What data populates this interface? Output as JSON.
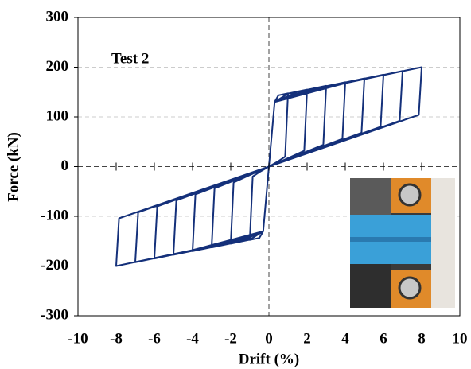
{
  "chart_data": {
    "type": "line",
    "annotation": "Test 2",
    "x_label": "Drift (%)",
    "y_label": "Force (kN)",
    "xlim": [
      -10,
      10
    ],
    "xticks": [
      -10,
      -8,
      -6,
      -4,
      -2,
      0,
      2,
      4,
      6,
      8,
      10
    ],
    "ylim": [
      -300,
      300
    ],
    "yticks": [
      -300,
      -200,
      -100,
      0,
      100,
      200,
      300
    ],
    "grid": true,
    "series": [
      {
        "color": "#14307a",
        "x": [
          0,
          0.3,
          0.5,
          1,
          0.85,
          0.5,
          0,
          -0.3,
          -0.5,
          -1,
          -0.85,
          -0.5,
          0,
          0.3,
          1,
          2,
          1.85,
          1,
          0,
          -0.3,
          -1,
          -2,
          -1.85,
          -1,
          0,
          0.3,
          1.5,
          3,
          2.85,
          1.5,
          0,
          -0.3,
          -1.5,
          -3,
          -2.85,
          -1.5,
          0,
          0.3,
          2,
          4,
          3.85,
          2,
          0,
          -0.3,
          -2,
          -4,
          -3.85,
          -2,
          0,
          0.3,
          2.5,
          5,
          4.85,
          2.5,
          0,
          -0.3,
          -2.5,
          -5,
          -4.85,
          -2.5,
          0,
          0.3,
          3,
          6,
          5.85,
          3,
          0,
          -0.3,
          -3,
          -6,
          -5.85,
          -3,
          0,
          0.3,
          3.5,
          7,
          6.85,
          3.5,
          0,
          -0.3,
          -3.5,
          -7,
          -6.85,
          -3.5,
          0,
          0.3,
          4,
          8,
          7.85,
          4,
          0,
          -0.3,
          -4,
          -8,
          -7.85,
          -4,
          0
        ],
        "y": [
          0,
          130,
          143.5,
          147.5,
          20,
          11,
          0,
          -130,
          -143.5,
          -147.5,
          -20,
          -11,
          0,
          130,
          147,
          155,
          32,
          17,
          0,
          -130,
          -147,
          -155,
          -32,
          -17,
          0,
          130,
          150.5,
          162.5,
          44,
          23,
          0,
          -130,
          -150.5,
          -162.5,
          -44,
          -23,
          0,
          130,
          154,
          170,
          56,
          29,
          0,
          -130,
          -154,
          -170,
          -56,
          -29,
          0,
          130,
          157.5,
          177.5,
          68,
          35,
          0,
          -130,
          -157.5,
          -177.5,
          -68,
          -35,
          0,
          130,
          161,
          185,
          80,
          41,
          0,
          -130,
          -161,
          -185,
          -80,
          -41,
          0,
          130,
          164.5,
          192.5,
          92,
          47,
          0,
          -130,
          -164.5,
          -192.5,
          -92,
          -47,
          0,
          130,
          168,
          200,
          104,
          53,
          0,
          -130,
          -168,
          -200,
          -104,
          -53,
          0
        ]
      }
    ]
  }
}
